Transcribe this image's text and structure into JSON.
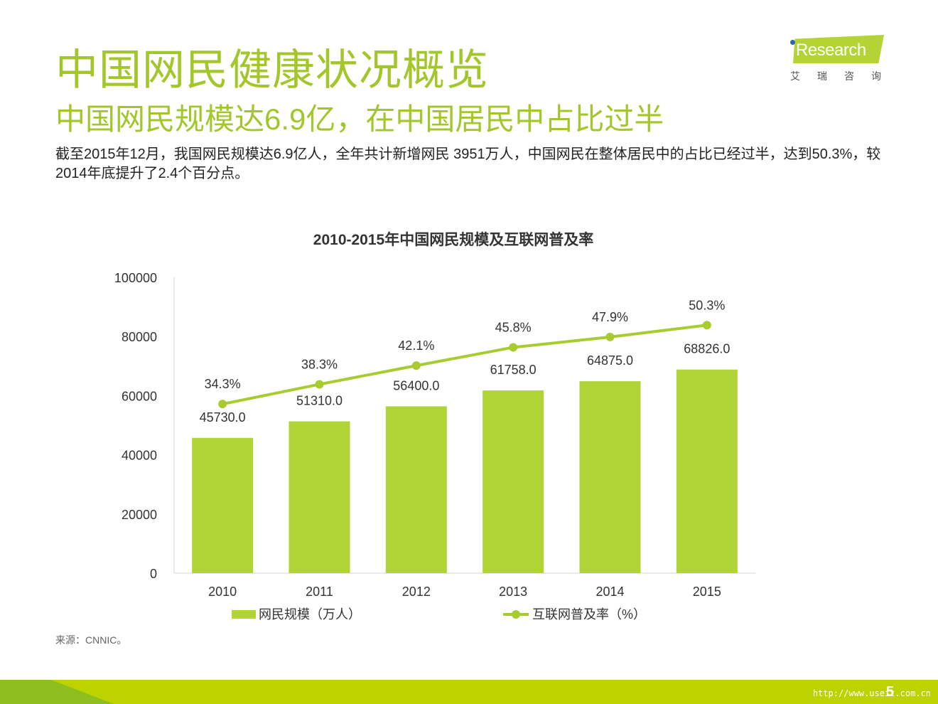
{
  "header": {
    "title": "中国网民健康状况概览",
    "subtitle": "中国网民规模达6.9亿，在中国居民中占比过半",
    "summary": "截至2015年12月，我国网民规模达6.9亿人，全年共计新增网民 3951万人，中国网民在整体居民中的占比已经过半，达到50.3%，较2014年底提升了2.4个百分点。"
  },
  "logo": {
    "text": "Research",
    "sub": "艾瑞咨询"
  },
  "chart_data": {
    "type": "bar",
    "title": "2010-2015年中国网民规模及互联网普及率",
    "categories": [
      "2010",
      "2011",
      "2012",
      "2013",
      "2014",
      "2015"
    ],
    "ylim": [
      0,
      100000
    ],
    "yticks": [
      "0",
      "20000",
      "40000",
      "60000",
      "80000",
      "100000"
    ],
    "series": [
      {
        "name": "网民规模（万人）",
        "type": "bar",
        "values": [
          45730,
          51310,
          56400,
          61758,
          64875,
          68826
        ],
        "labels": [
          "45730.0",
          "51310.0",
          "56400.0",
          "61758.0",
          "64875.0",
          "68826.0"
        ]
      },
      {
        "name": "互联网普及率（%）",
        "type": "line",
        "values": [
          34.3,
          38.3,
          42.1,
          45.8,
          47.9,
          50.3
        ],
        "labels": [
          "34.3%",
          "38.3%",
          "42.1%",
          "45.8%",
          "47.9%",
          "50.3%"
        ]
      }
    ],
    "colors": {
      "bar": "#b0d336",
      "line": "#a8cc2f"
    }
  },
  "source": "来源：CNNIC。",
  "footer": {
    "page": "5",
    "watermark": "http://www.useit.com.cn"
  }
}
